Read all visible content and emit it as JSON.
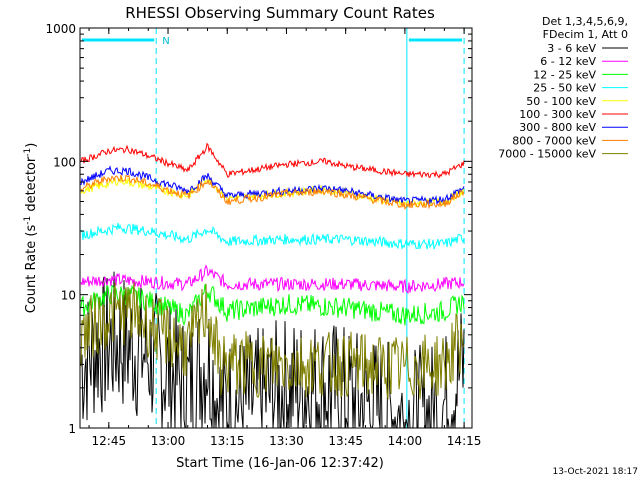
{
  "chart_data": {
    "type": "line",
    "title": "RHESSI Observing Summary Count Rates",
    "xlabel": "Start Time (16-Jan-06 12:37:42)",
    "ylabel": "Count Rate (s^-1 detector^-1)",
    "ylabel_main": "Count Rate (s",
    "ylabel_sup1": "-1",
    "ylabel_mid": " detector",
    "ylabel_sup2": "-1",
    "ylabel_end": ")",
    "y_scale": "log",
    "ylim": [
      1,
      1000
    ],
    "xlim": [
      "12:37:42",
      "14:17:00"
    ],
    "x_ticks": [
      "12:45",
      "13:00",
      "13:15",
      "13:30",
      "13:45",
      "14:00",
      "14:15"
    ],
    "y_ticks": [
      "1",
      "10",
      "100",
      "1000"
    ],
    "legend_header": [
      "Det 1,3,4,5,6,9,",
      "FDecim 1, Att 0"
    ],
    "legend_position": "right",
    "footer": "13-Oct-2021 18:17",
    "night_marker": "N",
    "night_intervals": [
      [
        "12:37:42",
        "12:57:00"
      ],
      [
        "14:00:30",
        "14:15:00"
      ]
    ],
    "series": [
      {
        "name": "3 - 6 keV",
        "color": "#000000",
        "x": [
          "12:38",
          "12:42",
          "12:48",
          "12:55",
          "13:05",
          "13:10",
          "13:13",
          "13:20",
          "13:30",
          "13:40",
          "13:50",
          "14:00",
          "14:05",
          "14:10",
          "14:15"
        ],
        "values": [
          3,
          4,
          4.5,
          3.5,
          2,
          3.5,
          1.5,
          1.5,
          2,
          2,
          1.5,
          1.2,
          1.2,
          1.5,
          3
        ]
      },
      {
        "name": "6 - 12 keV",
        "color": "#ff00ff",
        "x": [
          "12:38",
          "12:45",
          "12:55",
          "13:05",
          "13:10",
          "13:15",
          "13:30",
          "13:45",
          "14:00",
          "14:10",
          "14:15"
        ],
        "values": [
          12.5,
          13,
          12.5,
          12,
          15,
          12,
          12,
          12,
          11.5,
          12,
          12.5
        ]
      },
      {
        "name": "12 - 25 keV",
        "color": "#00ff00",
        "x": [
          "12:38",
          "12:45",
          "12:50",
          "12:55",
          "13:05",
          "13:10",
          "13:15",
          "13:30",
          "13:45",
          "14:00",
          "14:10",
          "14:15"
        ],
        "values": [
          8,
          10,
          10,
          9,
          7,
          11,
          7.5,
          8.5,
          8,
          7,
          7.5,
          9
        ]
      },
      {
        "name": "25 - 50 keV",
        "color": "#00ffff",
        "x": [
          "12:38",
          "12:48",
          "12:55",
          "13:05",
          "13:10",
          "13:15",
          "13:30",
          "13:45",
          "14:00",
          "14:10",
          "14:15"
        ],
        "values": [
          28,
          32,
          30,
          26,
          31,
          25,
          26,
          26,
          24,
          24,
          27
        ]
      },
      {
        "name": "50 - 100 keV",
        "color": "#ffff00",
        "x": [
          "12:38",
          "12:48",
          "12:55",
          "13:05",
          "13:10",
          "13:15",
          "13:30",
          "13:40",
          "13:45",
          "14:00",
          "14:10",
          "14:15"
        ],
        "values": [
          60,
          72,
          65,
          55,
          75,
          53,
          58,
          62,
          58,
          48,
          50,
          60
        ]
      },
      {
        "name": "100 - 300 keV",
        "color": "#ff0000",
        "x": [
          "12:38",
          "12:45",
          "12:50",
          "12:55",
          "13:05",
          "13:10",
          "13:15",
          "13:30",
          "13:40",
          "13:45",
          "14:00",
          "14:10",
          "14:15"
        ],
        "values": [
          100,
          120,
          123,
          110,
          85,
          130,
          80,
          95,
          100,
          92,
          80,
          80,
          97
        ]
      },
      {
        "name": "300 - 800 keV",
        "color": "#0000ff",
        "x": [
          "12:38",
          "12:45",
          "12:50",
          "12:55",
          "13:05",
          "13:10",
          "13:15",
          "13:30",
          "13:40",
          "13:45",
          "14:00",
          "14:10",
          "14:15"
        ],
        "values": [
          70,
          85,
          85,
          75,
          60,
          78,
          55,
          60,
          63,
          60,
          50,
          52,
          63
        ]
      },
      {
        "name": "800 - 7000 keV",
        "color": "#ff8000",
        "x": [
          "12:38",
          "12:45",
          "12:50",
          "12:55",
          "13:05",
          "13:10",
          "13:15",
          "13:30",
          "13:40",
          "13:45",
          "14:00",
          "14:10",
          "14:15"
        ],
        "values": [
          62,
          75,
          75,
          68,
          55,
          72,
          50,
          57,
          60,
          56,
          47,
          48,
          60
        ]
      },
      {
        "name": "7000 - 15000 keV",
        "color": "#808000",
        "x": [
          "12:38",
          "12:45",
          "12:50",
          "12:55",
          "13:05",
          "13:10",
          "13:13",
          "13:20",
          "13:30",
          "13:45",
          "14:00",
          "14:10",
          "14:15"
        ],
        "values": [
          5,
          7,
          7.5,
          6,
          4,
          8,
          3,
          3,
          3,
          3,
          2.8,
          3,
          5
        ]
      }
    ]
  }
}
